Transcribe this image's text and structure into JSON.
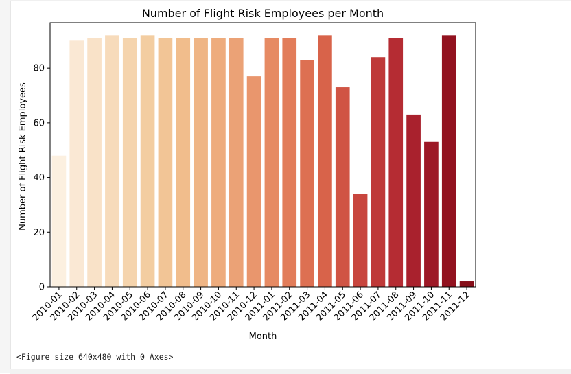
{
  "figure_caption": "<Figure size 640x480 with 0 Axes>",
  "chart_data": {
    "type": "bar",
    "title": "Number of Flight Risk Employees per Month",
    "xlabel": "Month",
    "ylabel": "Number of Flight Risk Employees",
    "ylim": [
      0,
      96.6
    ],
    "yticks": [
      0,
      20,
      40,
      60,
      80
    ],
    "grid": false,
    "legend": "none",
    "categories": [
      "2010-01",
      "2010-02",
      "2010-03",
      "2010-04",
      "2010-05",
      "2010-06",
      "2010-07",
      "2010-08",
      "2010-09",
      "2010-10",
      "2010-11",
      "2010-12",
      "2011-01",
      "2011-02",
      "2011-03",
      "2011-04",
      "2011-05",
      "2011-06",
      "2011-07",
      "2011-08",
      "2011-09",
      "2011-10",
      "2011-11",
      "2011-12"
    ],
    "values": [
      48,
      90,
      91,
      92,
      91,
      92,
      91,
      91,
      91,
      91,
      91,
      77,
      91,
      91,
      83,
      92,
      73,
      34,
      84,
      91,
      63,
      53,
      92,
      2
    ],
    "colormap": "OrRd",
    "colors": [
      "#fcf0e0",
      "#fae8d4",
      "#f9e2c8",
      "#f7dbbb",
      "#f5d4ad",
      "#f3cda1",
      "#f2c596",
      "#f1bd8c",
      "#efb585",
      "#eeac7d",
      "#eba276",
      "#e9966d",
      "#e68a63",
      "#e27d5a",
      "#dd7052",
      "#d8634a",
      "#d05444",
      "#c8463e",
      "#bf3938",
      "#b52c33",
      "#a9212d",
      "#9d1826",
      "#92121f",
      "#860e19"
    ]
  }
}
